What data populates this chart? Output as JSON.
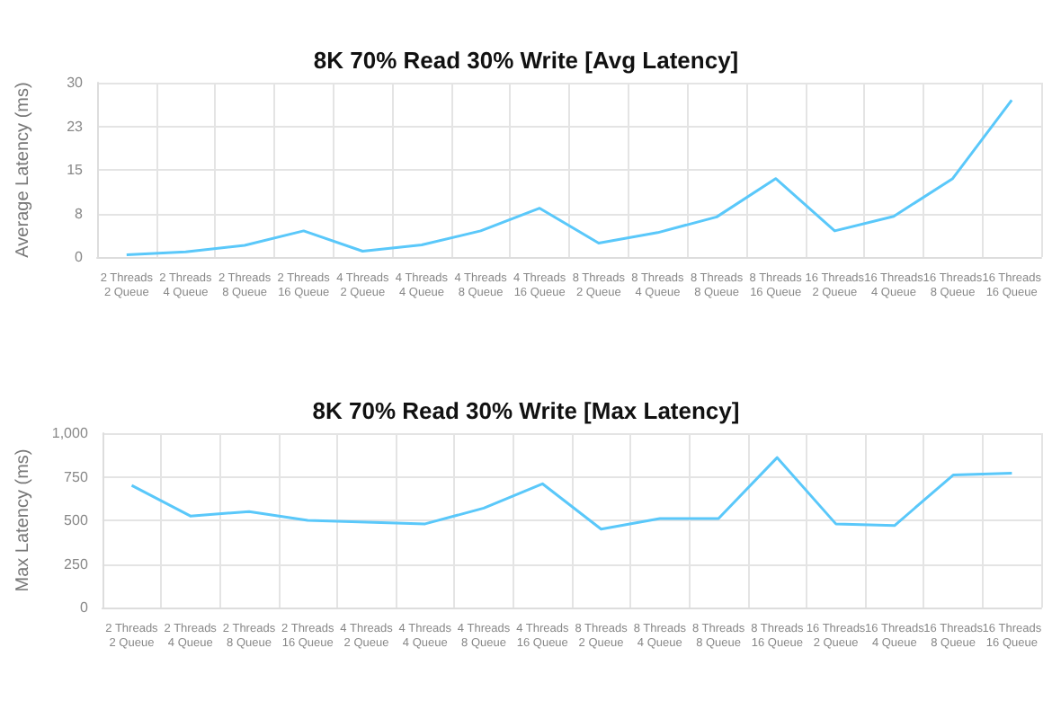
{
  "chart_data": [
    {
      "type": "line",
      "title": "8K 70% Read 30% Write [Avg Latency]",
      "ylabel": "Average Latency (ms)",
      "categories": [
        "2 Threads\n2 Queue",
        "2 Threads\n4 Queue",
        "2 Threads\n8 Queue",
        "2 Threads\n16 Queue",
        "4 Threads\n2 Queue",
        "4 Threads\n4 Queue",
        "4 Threads\n8 Queue",
        "4 Threads\n16 Queue",
        "8 Threads\n2 Queue",
        "8 Threads\n4 Queue",
        "8 Threads\n8 Queue",
        "8 Threads\n16 Queue",
        "16 Threads\n2 Queue",
        "16 Threads\n4 Queue",
        "16 Threads\n8 Queue",
        "16 Threads\n16 Queue"
      ],
      "series": [
        {
          "color": "#5ac8fa",
          "values": [
            0.4,
            0.9,
            2.0,
            4.5,
            1.0,
            2.1,
            4.5,
            8.4,
            2.4,
            4.2,
            6.9,
            13.5,
            4.5,
            7.0,
            13.5,
            27
          ]
        }
      ],
      "ylim": [
        0,
        30
      ],
      "yticks": [
        0,
        {
          "value": 7.5,
          "label": "8"
        },
        15,
        {
          "value": 22.5,
          "label": "23"
        },
        30
      ],
      "grid": true,
      "marker": "none",
      "line_style": "solid"
    },
    {
      "type": "line",
      "title": "8K 70% Read 30% Write [Max Latency]",
      "ylabel": "Max Latency (ms)",
      "categories": [
        "2 Threads\n2 Queue",
        "2 Threads\n4 Queue",
        "2 Threads\n8 Queue",
        "2 Threads\n16 Queue",
        "4 Threads\n2 Queue",
        "4 Threads\n4 Queue",
        "4 Threads\n8 Queue",
        "4 Threads\n16 Queue",
        "8 Threads\n2 Queue",
        "8 Threads\n4 Queue",
        "8 Threads\n8 Queue",
        "8 Threads\n16 Queue",
        "16 Threads\n2 Queue",
        "16 Threads\n4 Queue",
        "16 Threads\n8 Queue",
        "16 Threads\n16 Queue"
      ],
      "series": [
        {
          "color": "#5ac8fa",
          "values": [
            700,
            525,
            550,
            500,
            490,
            480,
            570,
            710,
            450,
            510,
            510,
            860,
            480,
            470,
            760,
            770
          ]
        }
      ],
      "ylim": [
        0,
        1000
      ],
      "yticks": [
        0,
        250,
        500,
        750,
        {
          "value": 1000,
          "label": "1,000"
        }
      ],
      "grid": true,
      "marker": "none",
      "line_style": "solid"
    }
  ]
}
